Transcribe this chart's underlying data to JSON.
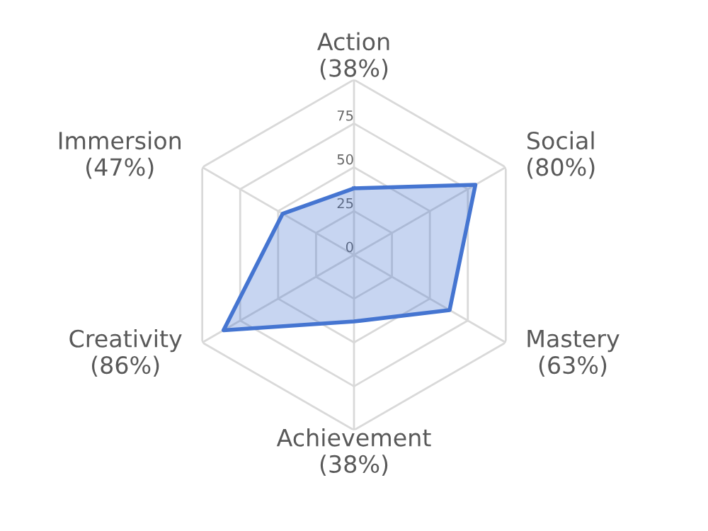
{
  "chart_data": {
    "type": "radar",
    "categories": [
      "Action\n(38%)",
      "Social\n(80%)",
      "Mastery\n(63%)",
      "Achievement\n(38%)",
      "Creativity\n(86%)",
      "Immersion\n(47%)"
    ],
    "series": [
      {
        "color": "#4575d1",
        "values": [
          38,
          80,
          63,
          38,
          86,
          47
        ]
      }
    ],
    "ylim": [
      0,
      100
    ],
    "yticks": [
      0,
      25,
      50,
      75
    ],
    "grid": true
  }
}
